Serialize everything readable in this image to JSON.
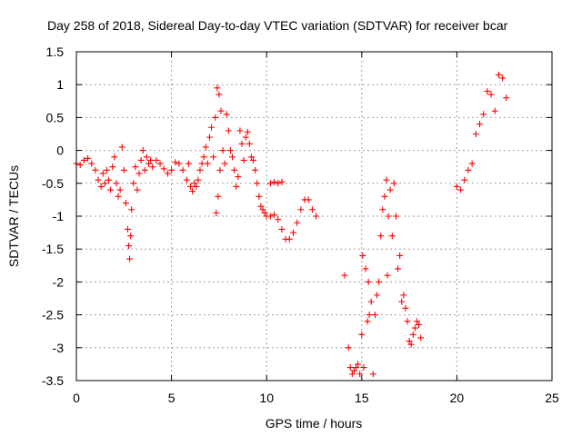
{
  "chart_data": {
    "type": "scatter",
    "title": "Day 258 of 2018, Sidereal Day-to-day VTEC variation (SDTVAR) for receiver bcar",
    "xlabel": "GPS time / hours",
    "ylabel": "SDTVAR / TECUs",
    "xlim": [
      0,
      25
    ],
    "ylim": [
      -3.5,
      1.5
    ],
    "xticks": [
      0,
      5,
      10,
      15,
      20,
      25
    ],
    "xtick_labels": [
      "0",
      "5",
      "10",
      "15",
      "20",
      "25"
    ],
    "yticks": [
      -3.5,
      -3,
      -2.5,
      -2,
      -1.5,
      -1,
      -0.5,
      0,
      0.5,
      1,
      1.5
    ],
    "ytick_labels": [
      "-3.5",
      "-3",
      "-2.5",
      "-2",
      "-1.5",
      "-1",
      "-0.5",
      "0",
      "0.5",
      "1",
      "1.5"
    ],
    "grid": true,
    "marker": "+",
    "color": "#ff0000",
    "series": [
      {
        "name": "SDTVAR",
        "points": [
          [
            0.0,
            -0.2
          ],
          [
            0.2,
            -0.22
          ],
          [
            0.4,
            -0.15
          ],
          [
            0.6,
            -0.12
          ],
          [
            0.8,
            -0.2
          ],
          [
            1.0,
            -0.3
          ],
          [
            1.15,
            -0.45
          ],
          [
            1.3,
            -0.55
          ],
          [
            1.4,
            -0.35
          ],
          [
            1.5,
            -0.5
          ],
          [
            1.6,
            -0.3
          ],
          [
            1.7,
            -0.45
          ],
          [
            1.8,
            -0.6
          ],
          [
            1.9,
            -0.25
          ],
          [
            2.0,
            -0.1
          ],
          [
            2.1,
            -0.5
          ],
          [
            2.2,
            -0.7
          ],
          [
            2.3,
            -0.6
          ],
          [
            2.4,
            0.05
          ],
          [
            2.5,
            -0.3
          ],
          [
            2.6,
            -0.8
          ],
          [
            2.7,
            -1.2
          ],
          [
            2.75,
            -1.45
          ],
          [
            2.8,
            -1.65
          ],
          [
            2.85,
            -1.3
          ],
          [
            2.9,
            -0.9
          ],
          [
            3.0,
            -0.5
          ],
          [
            3.1,
            -0.25
          ],
          [
            3.2,
            -0.6
          ],
          [
            3.3,
            -0.35
          ],
          [
            3.4,
            -0.15
          ],
          [
            3.5,
            0.0
          ],
          [
            3.6,
            -0.3
          ],
          [
            3.7,
            -0.1
          ],
          [
            3.8,
            -0.2
          ],
          [
            3.9,
            -0.15
          ],
          [
            4.0,
            -0.25
          ],
          [
            4.2,
            -0.15
          ],
          [
            4.4,
            -0.2
          ],
          [
            4.6,
            -0.28
          ],
          [
            4.8,
            -0.35
          ],
          [
            5.0,
            -0.3
          ],
          [
            5.2,
            -0.18
          ],
          [
            5.4,
            -0.2
          ],
          [
            5.6,
            -0.3
          ],
          [
            5.8,
            -0.45
          ],
          [
            5.9,
            -0.2
          ],
          [
            6.0,
            -0.55
          ],
          [
            6.1,
            -0.62
          ],
          [
            6.2,
            -0.5
          ],
          [
            6.3,
            -0.55
          ],
          [
            6.4,
            -0.45
          ],
          [
            6.5,
            -0.3
          ],
          [
            6.6,
            -0.2
          ],
          [
            6.7,
            -0.1
          ],
          [
            6.8,
            0.05
          ],
          [
            6.9,
            -0.2
          ],
          [
            7.0,
            0.2
          ],
          [
            7.1,
            0.35
          ],
          [
            7.2,
            -0.1
          ],
          [
            7.3,
            0.5
          ],
          [
            7.35,
            -0.95
          ],
          [
            7.4,
            0.95
          ],
          [
            7.45,
            -0.7
          ],
          [
            7.5,
            0.85
          ],
          [
            7.55,
            -0.3
          ],
          [
            7.6,
            0.6
          ],
          [
            7.7,
            0.0
          ],
          [
            7.8,
            -0.2
          ],
          [
            7.9,
            0.55
          ],
          [
            8.0,
            0.3
          ],
          [
            8.1,
            0.0
          ],
          [
            8.2,
            -0.1
          ],
          [
            8.3,
            -0.3
          ],
          [
            8.4,
            -0.55
          ],
          [
            8.5,
            -0.4
          ],
          [
            8.6,
            0.3
          ],
          [
            8.7,
            0.1
          ],
          [
            8.8,
            -0.15
          ],
          [
            8.9,
            0.2
          ],
          [
            9.0,
            0.28
          ],
          [
            9.1,
            0.1
          ],
          [
            9.2,
            -0.1
          ],
          [
            9.3,
            -0.15
          ],
          [
            9.4,
            -0.3
          ],
          [
            9.5,
            -0.5
          ],
          [
            9.6,
            -0.7
          ],
          [
            9.7,
            -0.85
          ],
          [
            9.8,
            -0.9
          ],
          [
            9.9,
            -0.95
          ],
          [
            10.0,
            -1.0
          ],
          [
            10.2,
            -0.5
          ],
          [
            10.4,
            -0.48
          ],
          [
            10.6,
            -0.5
          ],
          [
            10.8,
            -0.48
          ],
          [
            10.2,
            -1.0
          ],
          [
            10.4,
            -0.98
          ],
          [
            10.6,
            -1.05
          ],
          [
            10.8,
            -1.2
          ],
          [
            11.0,
            -1.35
          ],
          [
            11.2,
            -1.35
          ],
          [
            11.4,
            -1.25
          ],
          [
            11.6,
            -1.1
          ],
          [
            11.8,
            -0.9
          ],
          [
            12.0,
            -0.75
          ],
          [
            12.2,
            -0.75
          ],
          [
            12.4,
            -0.9
          ],
          [
            12.6,
            -1.0
          ],
          [
            14.1,
            -1.9
          ],
          [
            14.3,
            -3.0
          ],
          [
            14.4,
            -3.3
          ],
          [
            14.5,
            -3.4
          ],
          [
            14.6,
            -3.35
          ],
          [
            14.7,
            -3.3
          ],
          [
            14.8,
            -3.25
          ],
          [
            14.9,
            -3.4
          ],
          [
            15.0,
            -2.8
          ],
          [
            15.05,
            -1.6
          ],
          [
            15.1,
            -3.3
          ],
          [
            15.2,
            -1.8
          ],
          [
            15.3,
            -2.6
          ],
          [
            15.35,
            -2.0
          ],
          [
            15.4,
            -2.5
          ],
          [
            15.5,
            -2.3
          ],
          [
            15.6,
            -3.4
          ],
          [
            15.7,
            -2.5
          ],
          [
            15.8,
            -2.2
          ],
          [
            15.9,
            -2.0
          ],
          [
            16.0,
            -1.3
          ],
          [
            16.1,
            -0.9
          ],
          [
            16.2,
            -0.7
          ],
          [
            16.3,
            -0.45
          ],
          [
            16.35,
            -1.9
          ],
          [
            16.4,
            -1.0
          ],
          [
            16.5,
            -0.6
          ],
          [
            16.6,
            -1.3
          ],
          [
            16.7,
            -0.5
          ],
          [
            16.8,
            -1.0
          ],
          [
            16.9,
            -1.8
          ],
          [
            17.0,
            -1.6
          ],
          [
            17.1,
            -2.3
          ],
          [
            17.2,
            -2.2
          ],
          [
            17.3,
            -2.4
          ],
          [
            17.4,
            -2.6
          ],
          [
            17.5,
            -2.9
          ],
          [
            17.6,
            -2.95
          ],
          [
            17.7,
            -2.8
          ],
          [
            17.8,
            -2.7
          ],
          [
            17.9,
            -2.6
          ],
          [
            18.0,
            -2.65
          ],
          [
            18.1,
            -2.85
          ],
          [
            20.0,
            -0.55
          ],
          [
            20.2,
            -0.6
          ],
          [
            20.4,
            -0.45
          ],
          [
            20.6,
            -0.3
          ],
          [
            20.8,
            -0.2
          ],
          [
            21.0,
            0.25
          ],
          [
            21.2,
            0.4
          ],
          [
            21.4,
            0.55
          ],
          [
            21.6,
            0.9
          ],
          [
            21.8,
            0.85
          ],
          [
            22.0,
            0.6
          ],
          [
            22.2,
            1.15
          ],
          [
            22.4,
            1.1
          ],
          [
            22.6,
            0.8
          ]
        ]
      }
    ]
  }
}
